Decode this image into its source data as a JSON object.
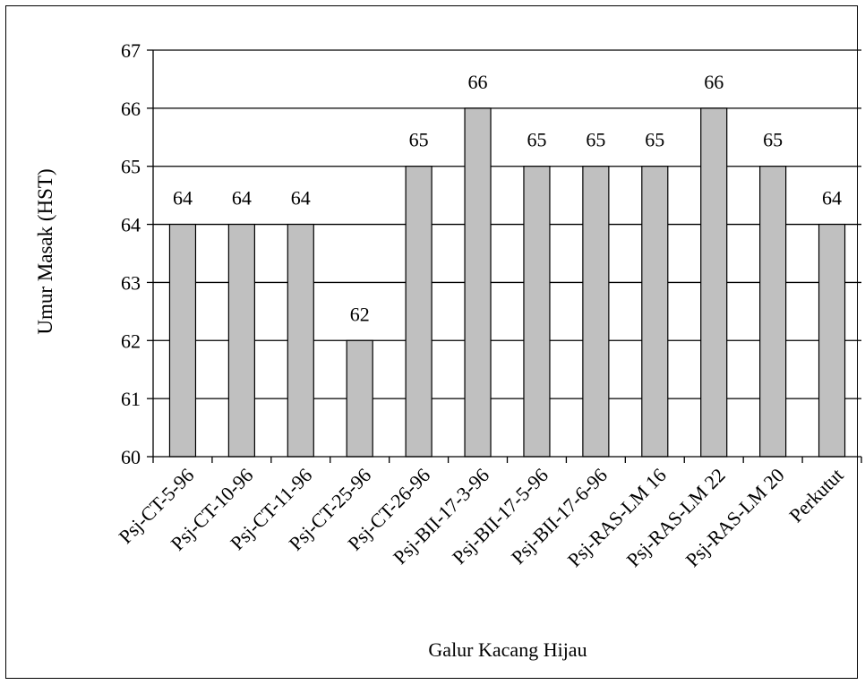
{
  "chart_data": {
    "type": "bar",
    "title": "",
    "xlabel": "Galur Kacang Hijau",
    "ylabel": "Umur Masak (HST)",
    "ylim": [
      60,
      67
    ],
    "yticks": [
      "60",
      "61",
      "62",
      "63",
      "64",
      "65",
      "66",
      "67"
    ],
    "grid": true,
    "categories": [
      "Psj-CT-5-96",
      "Psj-CT-10-96",
      "Psj-CT-11-96",
      "Psj-CT-25-96",
      "Psj-CT-26-96",
      "Psj-BII-17-3-96",
      "Psj-BII-17-5-96",
      "Psj-BII-17-6-96",
      "Psj-RAS-LM 16",
      "Psj-RAS-LM 22",
      "Psj-RAS-LM 20",
      "Perkutut"
    ],
    "values": [
      64,
      64,
      64,
      62,
      65,
      66,
      65,
      65,
      65,
      66,
      65,
      64
    ],
    "data_labels": [
      "64",
      "64",
      "64",
      "62",
      "65",
      "66",
      "65",
      "65",
      "65",
      "66",
      "65",
      "64"
    ],
    "colors": {
      "bar_fill": "#c0c0c0",
      "bar_stroke": "#000000",
      "grid": "#000000"
    }
  }
}
